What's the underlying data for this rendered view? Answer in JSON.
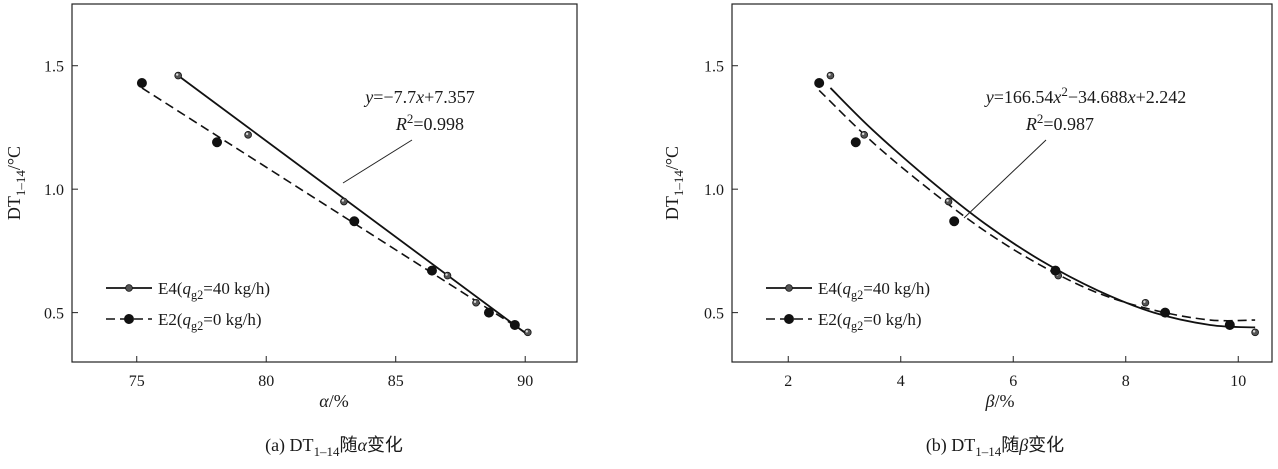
{
  "chart_data": [
    {
      "type": "scatter",
      "caption": "(a) DT1-14随α变化",
      "xlabel": "α/%",
      "ylabel": "DT1-14/°C",
      "xlim": [
        72.5,
        92
      ],
      "ylim": [
        0.3,
        1.75
      ],
      "xticks": [
        75,
        80,
        85,
        90
      ],
      "yticks": [
        0.5,
        1.0,
        1.5
      ],
      "xtick_labels": [
        "75",
        "80",
        "85",
        "90"
      ],
      "ytick_labels": [
        "0.5",
        "1.0",
        "1.5"
      ],
      "grid": false,
      "legend_position": "bottom-left",
      "annotation": {
        "equation": "y=−7.7x+7.357",
        "r2": "R2=0.998"
      },
      "series": [
        {
          "name": "E4(qg2=40 kg/h)",
          "marker": "small",
          "line": "solid",
          "x": [
            76.6,
            79.3,
            83.0,
            87.0,
            88.1,
            90.1
          ],
          "y": [
            1.46,
            1.22,
            0.95,
            0.65,
            0.54,
            0.42
          ],
          "fit": {
            "x": [
              76.6,
              90.1
            ],
            "y": [
              1.46,
              0.41
            ]
          }
        },
        {
          "name": "E2(qg2=0 kg/h)",
          "marker": "large",
          "line": "dashed",
          "x": [
            75.2,
            78.1,
            83.4,
            86.4,
            88.6,
            89.6
          ],
          "y": [
            1.43,
            1.19,
            0.87,
            0.67,
            0.5,
            0.45
          ],
          "fit": {
            "x": [
              75.2,
              90.0
            ],
            "y": [
              1.41,
              0.42
            ]
          }
        }
      ]
    },
    {
      "type": "scatter",
      "caption": "(b) DT1-14随β变化",
      "xlabel": "β/%",
      "ylabel": "DT1-14/°C",
      "xlim": [
        1,
        10.6
      ],
      "ylim": [
        0.3,
        1.75
      ],
      "xticks": [
        2,
        4,
        6,
        8,
        10
      ],
      "yticks": [
        0.5,
        1.0,
        1.5
      ],
      "xtick_labels": [
        "2",
        "4",
        "6",
        "8",
        "10"
      ],
      "ytick_labels": [
        "0.5",
        "1.0",
        "1.5"
      ],
      "grid": false,
      "legend_position": "bottom-left",
      "annotation": {
        "equation": "y=166.54x2−34.688x+2.242",
        "r2": "R2=0.987"
      },
      "series": [
        {
          "name": "E4(qg2=40 kg/h)",
          "marker": "small",
          "line": "solid",
          "x": [
            2.75,
            3.35,
            4.85,
            6.8,
            8.35,
            10.3
          ],
          "y": [
            1.46,
            1.22,
            0.95,
            0.65,
            0.54,
            0.42
          ],
          "fit": {
            "x": [
              2.75,
              3.5,
              4.5,
              5.5,
              6.5,
              7.5,
              8.5,
              9.5,
              10.3
            ],
            "y": [
              1.41,
              1.24,
              1.04,
              0.86,
              0.71,
              0.59,
              0.5,
              0.45,
              0.44
            ]
          }
        },
        {
          "name": "E2(qg2=0 kg/h)",
          "marker": "large",
          "line": "dashed",
          "x": [
            2.55,
            3.2,
            4.95,
            6.75,
            8.7,
            9.85
          ],
          "y": [
            1.43,
            1.19,
            0.87,
            0.67,
            0.5,
            0.45
          ],
          "fit": {
            "x": [
              2.55,
              3.5,
              4.5,
              5.5,
              6.5,
              7.5,
              8.5,
              9.5,
              10.3
            ],
            "y": [
              1.4,
              1.19,
              1.0,
              0.83,
              0.69,
              0.58,
              0.51,
              0.47,
              0.47
            ]
          }
        }
      ]
    }
  ]
}
